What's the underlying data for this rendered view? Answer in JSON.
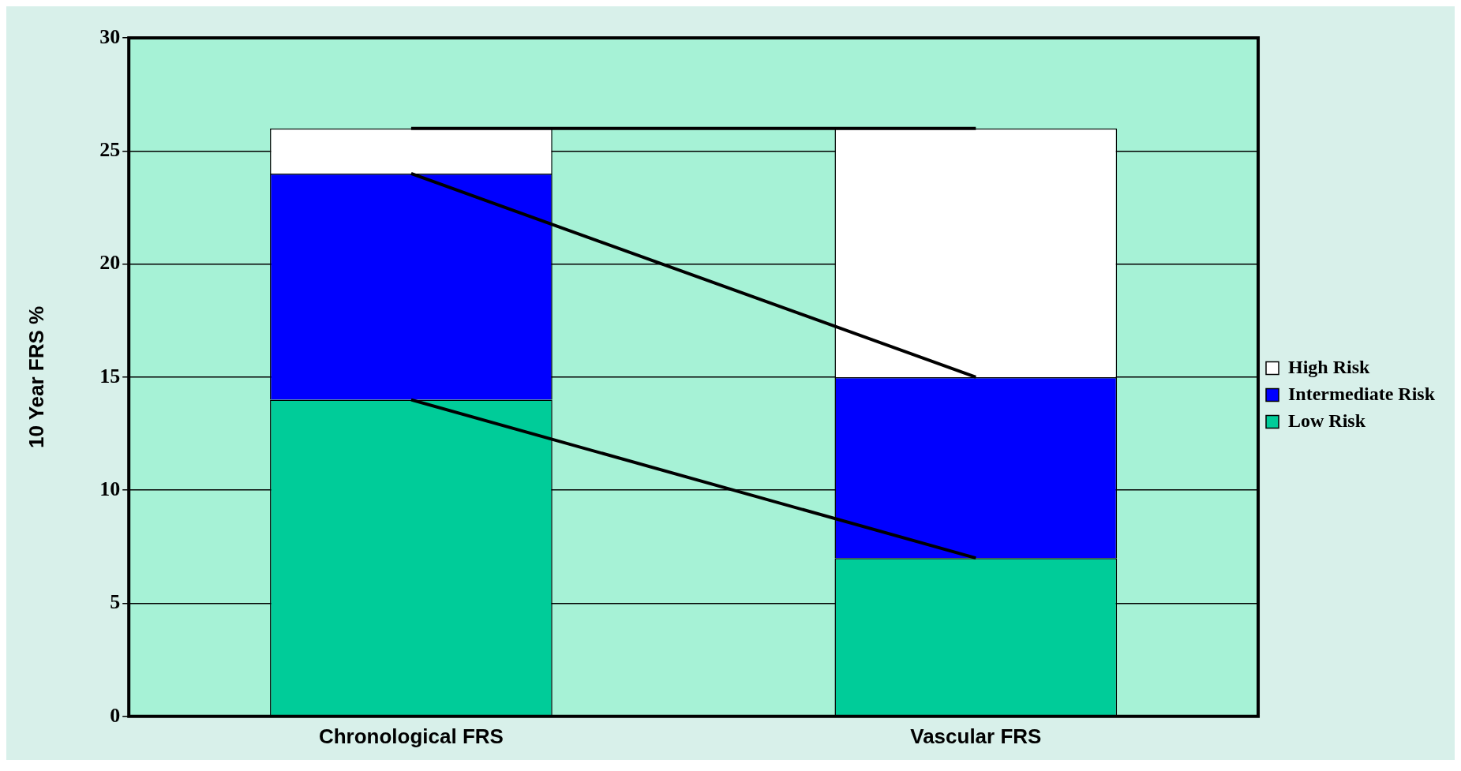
{
  "chart_data": {
    "type": "bar",
    "stacked": true,
    "ylabel": "10 Year FRS %",
    "categories": [
      "Chronological FRS",
      "Vascular FRS"
    ],
    "series": [
      {
        "name": "Low Risk",
        "color": "#00cc99",
        "values": [
          14,
          7
        ]
      },
      {
        "name": "Intermediate Risk",
        "color": "#0000ff",
        "values": [
          10,
          8
        ]
      },
      {
        "name": "High Risk",
        "color": "#ffffff",
        "values": [
          2,
          11
        ]
      },
      {
        "type": "line",
        "color": "#000000",
        "values": [
          14,
          7
        ]
      },
      {
        "type": "line",
        "color": "#000000",
        "values": [
          24,
          15
        ]
      },
      {
        "type": "line",
        "color": "#000000",
        "values": [
          26,
          26
        ]
      }
    ],
    "ylim": [
      0,
      30
    ],
    "yticks": [
      0,
      5,
      10,
      15,
      20,
      25,
      30
    ],
    "grid": "y",
    "legend": "right",
    "marker": "none"
  }
}
